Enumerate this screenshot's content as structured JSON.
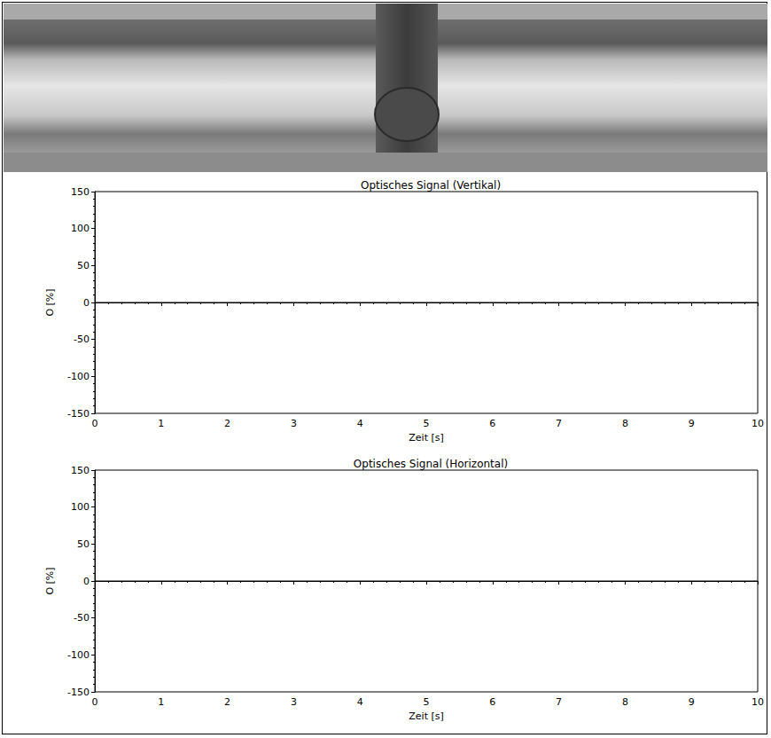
{
  "chart_data": [
    {
      "type": "line",
      "title": "Optisches Signal (Vertikal)",
      "x_label": "Zeit [s]",
      "y_label": "O [%]",
      "x": [
        0,
        10
      ],
      "values": [
        0,
        0
      ],
      "color": "#000000",
      "xlim": [
        0,
        10
      ],
      "xticks": [
        0,
        1,
        2,
        3,
        4,
        5,
        6,
        7,
        8,
        9,
        10
      ],
      "ylim": [
        -150,
        150
      ],
      "yticks": [
        -150,
        -100,
        -50,
        0,
        50,
        100,
        150
      ],
      "grid": false
    },
    {
      "type": "line",
      "title": "Optisches Signal (Horizontal)",
      "x_label": "Zeit [s]",
      "y_label": "O [%]",
      "x": [
        0,
        10
      ],
      "values": [
        0,
        0
      ],
      "color": "#000000",
      "xlim": [
        0,
        10
      ],
      "xticks": [
        0,
        1,
        2,
        3,
        4,
        5,
        6,
        7,
        8,
        9,
        10
      ],
      "ylim": [
        -150,
        150
      ],
      "yticks": [
        -150,
        -100,
        -50,
        0,
        50,
        100,
        150
      ],
      "grid": false
    }
  ]
}
